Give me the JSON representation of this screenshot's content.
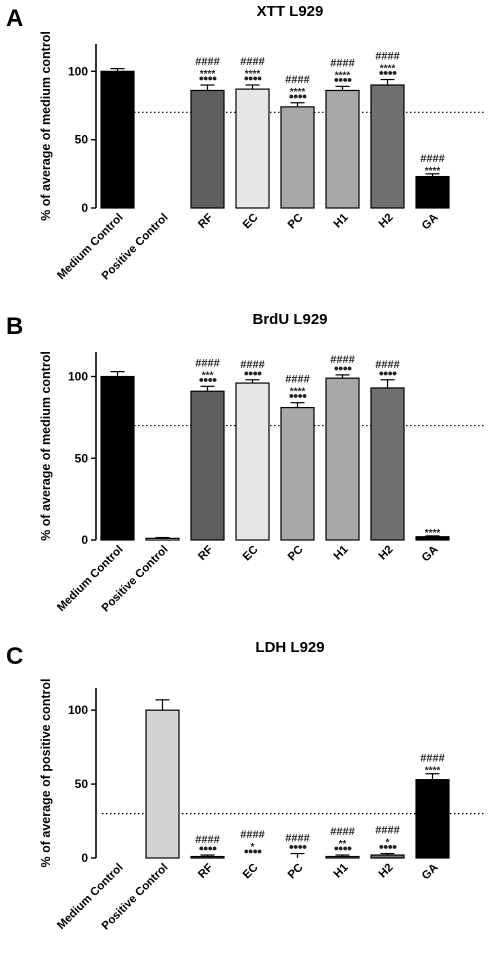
{
  "chart_data": [
    {
      "panel": "A",
      "type": "bar",
      "title": "XTT L929",
      "ylabel": "% of average of medium control",
      "ylim": [
        0,
        120
      ],
      "yticks": [
        0,
        50,
        100
      ],
      "threshold": 70,
      "categories": [
        "Medium Control",
        "Positive Control",
        "RF",
        "EC",
        "PC",
        "H1",
        "H2",
        "GA"
      ],
      "values": [
        100,
        0,
        86,
        87,
        74,
        86,
        90,
        23
      ],
      "errors": [
        2,
        0,
        4,
        3,
        3,
        3,
        4,
        2
      ],
      "colors": [
        "#000000",
        "#ffffff",
        "#5e5e5e",
        "#e6e6e6",
        "#a8a8a8",
        "#a8a8a8",
        "#707070",
        "#000000"
      ],
      "annotations": [
        [],
        [],
        [
          "####",
          "****",
          "●●●●"
        ],
        [
          "####",
          "****",
          "●●●●"
        ],
        [
          "####",
          "****",
          "●●●●"
        ],
        [
          "####",
          "****",
          "●●●●"
        ],
        [
          "####",
          "****",
          "●●●●"
        ],
        [
          "####",
          "****"
        ]
      ]
    },
    {
      "panel": "B",
      "type": "bar",
      "title": "BrdU L929",
      "ylabel": "% of average of medium control",
      "ylim": [
        0,
        115
      ],
      "yticks": [
        0,
        50,
        100
      ],
      "threshold": 70,
      "categories": [
        "Medium Control",
        "Positive Control",
        "RF",
        "EC",
        "PC",
        "H1",
        "H2",
        "GA"
      ],
      "values": [
        100,
        1,
        91,
        96,
        81,
        99,
        93,
        2
      ],
      "errors": [
        3,
        0.5,
        3,
        2,
        3,
        2,
        5,
        0.5
      ],
      "colors": [
        "#000000",
        "#ffffff",
        "#5e5e5e",
        "#e6e6e6",
        "#a8a8a8",
        "#a8a8a8",
        "#707070",
        "#000000"
      ],
      "annotations": [
        [],
        [],
        [
          "####",
          "***",
          "●●●●"
        ],
        [
          "####",
          "●●●●"
        ],
        [
          "####",
          "****",
          "●●●●"
        ],
        [
          "####",
          "●●●●"
        ],
        [
          "####",
          "●●●●"
        ],
        [
          "****"
        ]
      ]
    },
    {
      "panel": "C",
      "type": "bar",
      "title": "LDH L929",
      "ylabel": "% of average of positive control",
      "ylim": [
        0,
        115
      ],
      "yticks": [
        0,
        50,
        100
      ],
      "threshold": 30,
      "categories": [
        "Medium Control",
        "Positive Control",
        "RF",
        "EC",
        "PC",
        "H1",
        "H2",
        "GA"
      ],
      "values": [
        0,
        100,
        1,
        0,
        0,
        1,
        2,
        53
      ],
      "errors": [
        0,
        7,
        1,
        0,
        3,
        1,
        1,
        4
      ],
      "colors": [
        "#000000",
        "#d4d4d4",
        "#5e5e5e",
        "#e6e6e6",
        "#a8a8a8",
        "#a8a8a8",
        "#707070",
        "#000000"
      ],
      "annotations": [
        [],
        [],
        [
          "####",
          "●●●●"
        ],
        [
          "####",
          "*",
          "●●●●"
        ],
        [
          "####",
          "●●●●"
        ],
        [
          "####",
          "**",
          "●●●●"
        ],
        [
          "####",
          "*",
          "●●●●"
        ],
        [
          "####",
          "****"
        ]
      ]
    }
  ]
}
